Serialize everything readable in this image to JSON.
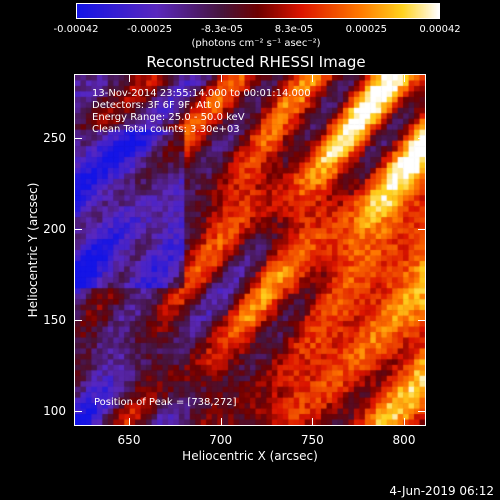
{
  "colorbar": {
    "ticks": [
      "-0.00042",
      "-0.00025",
      "-8.3e-05",
      "8.3e-05",
      "0.00025",
      "0.00042"
    ],
    "tick_values": [
      -0.00042,
      -0.00025,
      -8.3e-05,
      8.3e-05,
      0.00025,
      0.00042
    ],
    "range": [
      -0.00042,
      0.00042
    ],
    "colormap": "blue-purple-red-yellow-white",
    "units_label": "(photons cm⁻² s⁻¹ asec⁻²)"
  },
  "chart_data": {
    "type": "heatmap",
    "title": "Reconstructed RHESSI Image",
    "xlabel": "Heliocentric X (arcsec)",
    "ylabel": "Heliocentric Y (arcsec)",
    "xlim": [
      620,
      812
    ],
    "ylim": [
      92,
      285
    ],
    "x_ticks": [
      "650",
      "700",
      "750",
      "800"
    ],
    "x_tick_values": [
      650,
      700,
      750,
      800
    ],
    "y_ticks": [
      "100",
      "150",
      "200",
      "250"
    ],
    "y_tick_values": [
      100,
      150,
      200,
      250
    ],
    "peak": {
      "x": 738,
      "y": 272
    }
  },
  "info": {
    "line1": "13-Nov-2014 23:55:14.000 to 00:01:14.000",
    "line2": "Detectors: 3F 6F 9F, Att 0",
    "line3": "Energy Range: 25.0 - 50.0 keV",
    "line4": "Clean     Total counts: 3.30e+03",
    "peak_text": "Position of Peak = [738,272]"
  },
  "timestamp": "4-Jun-2019 06:12"
}
